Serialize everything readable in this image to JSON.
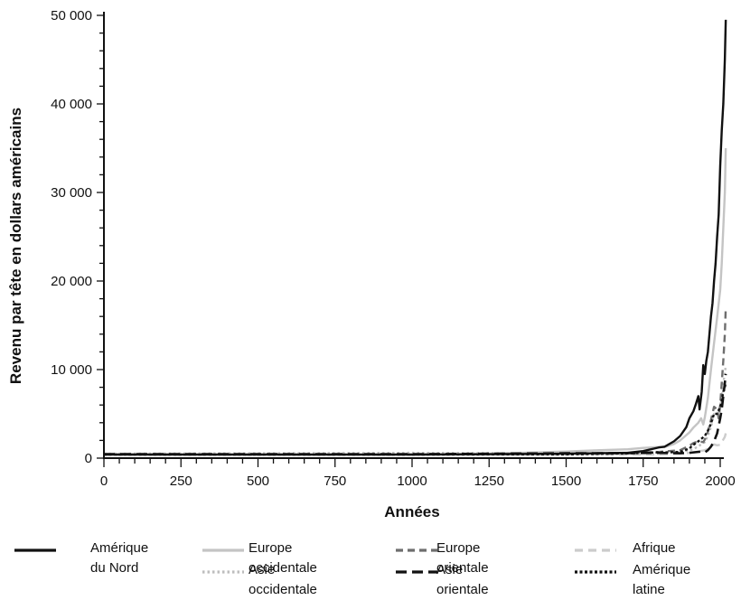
{
  "chart_data": {
    "type": "line",
    "title": "",
    "xlabel": "Années",
    "ylabel": "Revenu par tête en dollars américains",
    "xlim": [
      0,
      2000
    ],
    "ylim": [
      0,
      50000
    ],
    "x_ticks": [
      0,
      250,
      500,
      750,
      1000,
      1250,
      1500,
      1750,
      2000
    ],
    "x_tick_labels": [
      "0",
      "250",
      "500",
      "750",
      "1000",
      "1250",
      "1500",
      "1750",
      "2000"
    ],
    "y_ticks": [
      0,
      10000,
      20000,
      30000,
      40000,
      50000
    ],
    "y_tick_labels": [
      "0",
      "10 000",
      "20 000",
      "30 000",
      "40 000",
      "50 000"
    ],
    "legend_placement": "bottom",
    "grid": false,
    "series": [
      {
        "name": "Amérique\ndu Nord",
        "color": "#111111",
        "dash": "solid",
        "points": [
          [
            0,
            400
          ],
          [
            1000,
            400
          ],
          [
            1500,
            500
          ],
          [
            1600,
            550
          ],
          [
            1700,
            600
          ],
          [
            1750,
            800
          ],
          [
            1800,
            1200
          ],
          [
            1820,
            1300
          ],
          [
            1850,
            1900
          ],
          [
            1870,
            2500
          ],
          [
            1890,
            3500
          ],
          [
            1900,
            4500
          ],
          [
            1913,
            5300
          ],
          [
            1920,
            6000
          ],
          [
            1929,
            7000
          ],
          [
            1933,
            5500
          ],
          [
            1940,
            7500
          ],
          [
            1945,
            10500
          ],
          [
            1950,
            9500
          ],
          [
            1955,
            11000
          ],
          [
            1960,
            12000
          ],
          [
            1965,
            14000
          ],
          [
            1970,
            16000
          ],
          [
            1975,
            17500
          ],
          [
            1980,
            20000
          ],
          [
            1985,
            22000
          ],
          [
            1990,
            25000
          ],
          [
            1995,
            27500
          ],
          [
            2000,
            33000
          ],
          [
            2005,
            37000
          ],
          [
            2010,
            40000
          ],
          [
            2015,
            45000
          ],
          [
            2018,
            49500
          ]
        ]
      },
      {
        "name": "Europe occidentale",
        "color": "#c4c4c4",
        "dash": "solid",
        "points": [
          [
            0,
            450
          ],
          [
            1000,
            420
          ],
          [
            1250,
            500
          ],
          [
            1500,
            750
          ],
          [
            1600,
            880
          ],
          [
            1700,
            1000
          ],
          [
            1750,
            1150
          ],
          [
            1800,
            1250
          ],
          [
            1820,
            1250
          ],
          [
            1850,
            1600
          ],
          [
            1870,
            2000
          ],
          [
            1900,
            2900
          ],
          [
            1913,
            3450
          ],
          [
            1929,
            4000
          ],
          [
            1938,
            4500
          ],
          [
            1945,
            3800
          ],
          [
            1950,
            4600
          ],
          [
            1960,
            6800
          ],
          [
            1970,
            10000
          ],
          [
            1980,
            13000
          ],
          [
            1990,
            15900
          ],
          [
            2000,
            19000
          ],
          [
            2005,
            22000
          ],
          [
            2010,
            26000
          ],
          [
            2015,
            30000
          ],
          [
            2018,
            35000
          ]
        ]
      },
      {
        "name": "Europe orientale",
        "color": "#6e6e6e",
        "dash": "dash-medium",
        "points": [
          [
            0,
            400
          ],
          [
            1000,
            400
          ],
          [
            1500,
            500
          ],
          [
            1700,
            600
          ],
          [
            1800,
            700
          ],
          [
            1870,
            900
          ],
          [
            1900,
            1400
          ],
          [
            1913,
            1700
          ],
          [
            1929,
            1900
          ],
          [
            1945,
            1800
          ],
          [
            1950,
            2100
          ],
          [
            1960,
            3000
          ],
          [
            1970,
            4300
          ],
          [
            1980,
            5800
          ],
          [
            1990,
            5500
          ],
          [
            1995,
            4500
          ],
          [
            2000,
            6000
          ],
          [
            2005,
            8500
          ],
          [
            2010,
            11000
          ],
          [
            2015,
            14000
          ],
          [
            2018,
            17000
          ]
        ]
      },
      {
        "name": "Afrique",
        "color": "#cccccc",
        "dash": "dash-long-light",
        "points": [
          [
            0,
            420
          ],
          [
            1000,
            420
          ],
          [
            1500,
            420
          ],
          [
            1700,
            420
          ],
          [
            1800,
            420
          ],
          [
            1870,
            500
          ],
          [
            1900,
            600
          ],
          [
            1913,
            640
          ],
          [
            1950,
            900
          ],
          [
            1960,
            1050
          ],
          [
            1970,
            1350
          ],
          [
            1980,
            1550
          ],
          [
            1990,
            1450
          ],
          [
            2000,
            1500
          ],
          [
            2005,
            1800
          ],
          [
            2010,
            2100
          ],
          [
            2015,
            2400
          ],
          [
            2018,
            2800
          ]
        ]
      },
      {
        "name": "Asie occidentale",
        "color": "#bdbdbd",
        "dash": "dot",
        "points": [
          [
            0,
            500
          ],
          [
            1000,
            600
          ],
          [
            1500,
            550
          ],
          [
            1700,
            590
          ],
          [
            1800,
            620
          ],
          [
            1870,
            700
          ],
          [
            1900,
            900
          ],
          [
            1913,
            1000
          ],
          [
            1950,
            1800
          ],
          [
            1960,
            2500
          ],
          [
            1970,
            3500
          ],
          [
            1980,
            5000
          ],
          [
            1990,
            5000
          ],
          [
            2000,
            5800
          ],
          [
            2005,
            7000
          ],
          [
            2010,
            8500
          ],
          [
            2015,
            9500
          ],
          [
            2018,
            10500
          ]
        ]
      },
      {
        "name": "Asie orientale",
        "color": "#111111",
        "dash": "dash-long",
        "points": [
          [
            0,
            450
          ],
          [
            1000,
            450
          ],
          [
            1500,
            550
          ],
          [
            1700,
            560
          ],
          [
            1800,
            600
          ],
          [
            1870,
            550
          ],
          [
            1900,
            600
          ],
          [
            1913,
            650
          ],
          [
            1940,
            750
          ],
          [
            1950,
            650
          ],
          [
            1960,
            900
          ],
          [
            1970,
            1300
          ],
          [
            1980,
            1900
          ],
          [
            1990,
            2800
          ],
          [
            2000,
            4500
          ],
          [
            2005,
            5500
          ],
          [
            2010,
            7000
          ],
          [
            2015,
            8500
          ],
          [
            2018,
            9500
          ]
        ]
      },
      {
        "name": "Amérique latine",
        "color": "#111111",
        "dash": "dot-dense",
        "points": [
          [
            0,
            400
          ],
          [
            1000,
            400
          ],
          [
            1500,
            420
          ],
          [
            1700,
            530
          ],
          [
            1800,
            660
          ],
          [
            1820,
            650
          ],
          [
            1870,
            700
          ],
          [
            1900,
            1100
          ],
          [
            1913,
            1500
          ],
          [
            1929,
            1900
          ],
          [
            1950,
            2500
          ],
          [
            1960,
            3100
          ],
          [
            1970,
            3900
          ],
          [
            1980,
            5000
          ],
          [
            1990,
            5000
          ],
          [
            2000,
            5800
          ],
          [
            2005,
            6500
          ],
          [
            2010,
            7500
          ],
          [
            2015,
            8000
          ],
          [
            2018,
            8500
          ]
        ]
      }
    ]
  }
}
